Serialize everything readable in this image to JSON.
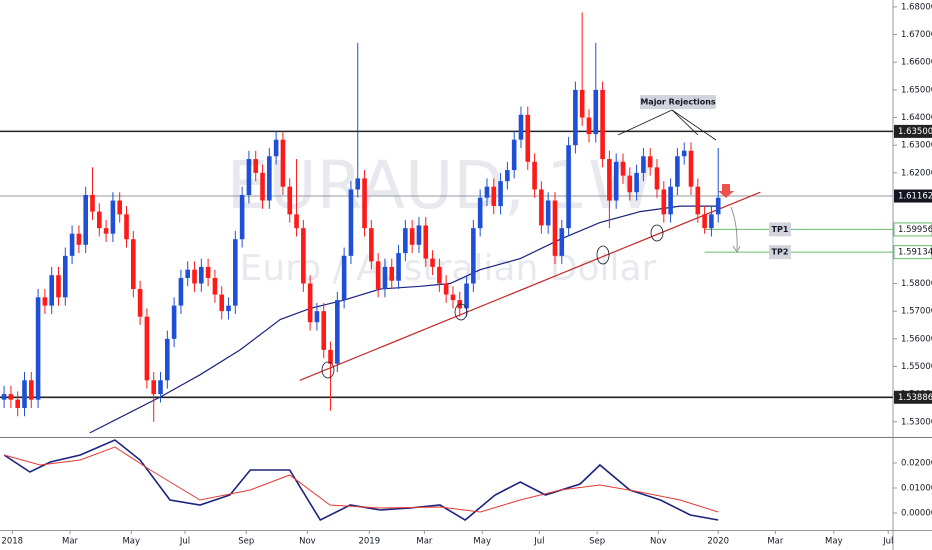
{
  "chart_data": [
    {
      "type": "candlestick",
      "watermark": [
        "EURAUD, 1W",
        "Euro / Australian Dollar"
      ],
      "up_color": "#1f4fd6",
      "down_color": "#ff1a1a",
      "open": [
        1.538,
        1.54,
        1.538,
        1.535,
        1.545,
        1.538,
        1.575,
        1.572,
        1.583,
        1.575,
        1.59,
        1.598,
        1.594,
        1.612,
        1.606,
        1.6,
        1.598,
        1.61,
        1.605,
        1.596,
        1.578,
        1.568,
        1.545,
        1.54,
        1.545,
        1.56,
        1.572,
        1.582,
        1.585,
        1.58,
        1.586,
        1.582,
        1.576,
        1.57,
        1.572,
        1.596,
        1.612,
        1.625,
        1.62,
        1.61,
        1.626,
        1.632,
        1.615,
        1.605,
        1.6,
        1.58,
        1.566,
        1.57,
        1.556,
        1.551,
        1.574,
        1.59,
        1.614,
        1.618,
        1.6,
        1.588,
        1.578,
        1.586,
        1.581,
        1.591,
        1.6,
        1.594,
        1.601,
        1.589,
        1.586,
        1.58,
        1.576,
        1.574,
        1.571,
        1.58,
        1.6,
        1.611,
        1.615,
        1.608,
        1.617,
        1.621,
        1.632,
        1.641,
        1.624,
        1.614,
        1.601,
        1.61,
        1.59,
        1.6,
        1.63,
        1.65,
        1.64,
        1.634,
        1.65,
        1.625,
        1.61,
        1.624,
        1.619,
        1.613,
        1.62,
        1.626,
        1.622,
        1.614,
        1.605,
        1.615,
        1.626,
        1.628,
        1.615,
        1.605,
        1.6,
        1.605
      ],
      "high": [
        1.543,
        1.543,
        1.541,
        1.548,
        1.548,
        1.578,
        1.578,
        1.586,
        1.586,
        1.593,
        1.601,
        1.601,
        1.615,
        1.622,
        1.609,
        1.603,
        1.613,
        1.613,
        1.608,
        1.599,
        1.581,
        1.571,
        1.548,
        1.548,
        1.563,
        1.575,
        1.585,
        1.588,
        1.588,
        1.589,
        1.589,
        1.585,
        1.579,
        1.575,
        1.599,
        1.615,
        1.628,
        1.628,
        1.623,
        1.629,
        1.635,
        1.635,
        1.618,
        1.625,
        1.603,
        1.583,
        1.573,
        1.573,
        1.559,
        1.577,
        1.593,
        1.617,
        1.667,
        1.621,
        1.603,
        1.591,
        1.589,
        1.589,
        1.594,
        1.603,
        1.603,
        1.604,
        1.604,
        1.592,
        1.589,
        1.583,
        1.579,
        1.577,
        1.583,
        1.603,
        1.614,
        1.618,
        1.618,
        1.62,
        1.624,
        1.635,
        1.644,
        1.644,
        1.627,
        1.617,
        1.613,
        1.613,
        1.603,
        1.633,
        1.653,
        1.678,
        1.643,
        1.667,
        1.653,
        1.628,
        1.627,
        1.627,
        1.622,
        1.623,
        1.629,
        1.629,
        1.625,
        1.617,
        1.618,
        1.629,
        1.631,
        1.631,
        1.618,
        1.608,
        1.608,
        1.629
      ],
      "low": [
        1.535,
        1.535,
        1.532,
        1.532,
        1.535,
        1.535,
        1.569,
        1.569,
        1.572,
        1.572,
        1.587,
        1.591,
        1.591,
        1.603,
        1.597,
        1.595,
        1.595,
        1.602,
        1.593,
        1.575,
        1.565,
        1.542,
        1.53,
        1.537,
        1.542,
        1.557,
        1.569,
        1.579,
        1.577,
        1.577,
        1.579,
        1.573,
        1.567,
        1.567,
        1.569,
        1.593,
        1.609,
        1.617,
        1.607,
        1.607,
        1.623,
        1.612,
        1.602,
        1.597,
        1.577,
        1.563,
        1.563,
        1.553,
        1.534,
        1.548,
        1.571,
        1.587,
        1.611,
        1.597,
        1.585,
        1.575,
        1.575,
        1.578,
        1.578,
        1.588,
        1.591,
        1.591,
        1.586,
        1.583,
        1.577,
        1.573,
        1.571,
        1.568,
        1.568,
        1.577,
        1.597,
        1.608,
        1.605,
        1.605,
        1.614,
        1.618,
        1.629,
        1.621,
        1.611,
        1.598,
        1.598,
        1.587,
        1.587,
        1.597,
        1.627,
        1.637,
        1.631,
        1.631,
        1.622,
        1.6,
        1.607,
        1.616,
        1.61,
        1.61,
        1.617,
        1.619,
        1.611,
        1.602,
        1.602,
        1.612,
        1.623,
        1.612,
        1.602,
        1.598,
        1.597,
        1.602
      ],
      "close": [
        1.54,
        1.538,
        1.535,
        1.545,
        1.538,
        1.575,
        1.572,
        1.583,
        1.575,
        1.59,
        1.598,
        1.594,
        1.612,
        1.606,
        1.6,
        1.598,
        1.61,
        1.605,
        1.596,
        1.578,
        1.568,
        1.545,
        1.54,
        1.545,
        1.56,
        1.572,
        1.582,
        1.585,
        1.58,
        1.586,
        1.582,
        1.576,
        1.57,
        1.572,
        1.596,
        1.612,
        1.625,
        1.62,
        1.61,
        1.626,
        1.632,
        1.615,
        1.605,
        1.6,
        1.58,
        1.566,
        1.57,
        1.556,
        1.551,
        1.574,
        1.59,
        1.614,
        1.618,
        1.6,
        1.588,
        1.578,
        1.586,
        1.581,
        1.591,
        1.6,
        1.594,
        1.601,
        1.589,
        1.586,
        1.58,
        1.576,
        1.574,
        1.571,
        1.58,
        1.6,
        1.611,
        1.615,
        1.608,
        1.617,
        1.621,
        1.632,
        1.641,
        1.624,
        1.614,
        1.601,
        1.61,
        1.59,
        1.6,
        1.63,
        1.65,
        1.64,
        1.634,
        1.65,
        1.625,
        1.61,
        1.624,
        1.619,
        1.613,
        1.62,
        1.626,
        1.622,
        1.614,
        1.605,
        1.615,
        1.626,
        1.628,
        1.615,
        1.605,
        1.6,
        1.605,
        1.611
      ],
      "lines": [
        {
          "color": "#1a237e",
          "x": [
            12.6,
            23,
            28.8,
            34.7,
            40.6,
            45,
            50,
            55.3,
            61.2,
            65.6,
            70,
            75.9,
            81.8,
            87.6,
            93.5,
            99.4,
            105
          ],
          "values": [
            1.526,
            1.539,
            1.547,
            1.556,
            1.567,
            1.571,
            1.574,
            1.578,
            1.579,
            1.58,
            1.585,
            1.589,
            1.596,
            1.602,
            1.606,
            1.608,
            1.608
          ]
        },
        {
          "color": "#c62828",
          "x": [
            43.5,
            111.2
          ],
          "values": [
            1.545,
            1.613
          ]
        }
      ],
      "levels": [
        {
          "value": 1.635,
          "label": "1.63500",
          "color": "#222222"
        },
        {
          "value": 1.61162,
          "label": "1.61162",
          "color": "#9598a1"
        },
        {
          "value": 1.59956,
          "label": "1.59956",
          "color": "#66bb6a",
          "x_start": 103
        },
        {
          "value": 1.59134,
          "label": "1.59134",
          "color": "#66bb6a",
          "x_start": 103
        },
        {
          "value": 1.53886,
          "label": "1.53886",
          "color": "#222222"
        }
      ],
      "annotations": [
        "Major Rejections",
        "TP1",
        "TP2"
      ],
      "xlim": [
        -0.6,
        130.7
      ],
      "xticks": [
        {
          "value": 1.2,
          "label": "2018"
        },
        {
          "value": 9.7,
          "label": "Mar"
        },
        {
          "value": 18.7,
          "label": "May"
        },
        {
          "value": 26.6,
          "label": "Jul"
        },
        {
          "value": 35.6,
          "label": "Sep"
        },
        {
          "value": 44.6,
          "label": "Nov"
        },
        {
          "value": 53.7,
          "label": "2019"
        },
        {
          "value": 61.8,
          "label": "Mar"
        },
        {
          "value": 70.3,
          "label": "May"
        },
        {
          "value": 78.7,
          "label": "Jul"
        },
        {
          "value": 87.2,
          "label": "Sep"
        },
        {
          "value": 96.2,
          "label": "Nov"
        },
        {
          "value": 105,
          "label": "2020"
        },
        {
          "value": 113.4,
          "label": "Mar"
        },
        {
          "value": 122,
          "label": "May"
        },
        {
          "value": 130,
          "label": "Jul"
        }
      ],
      "ylim": [
        1.5245,
        1.6825
      ],
      "yticks": [
        {
          "value": 1.53,
          "label": "1.53000"
        },
        {
          "value": 1.54,
          "label": "1.54000"
        },
        {
          "value": 1.55,
          "label": "1.55000"
        },
        {
          "value": 1.56,
          "label": "1.56000"
        },
        {
          "value": 1.57,
          "label": "1.57000"
        },
        {
          "value": 1.58,
          "label": "1.58000"
        },
        {
          "value": 1.62,
          "label": "1.62000"
        },
        {
          "value": 1.63,
          "label": "1.63000"
        },
        {
          "value": 1.64,
          "label": "1.64000"
        },
        {
          "value": 1.65,
          "label": "1.65000"
        },
        {
          "value": 1.66,
          "label": "1.66000"
        },
        {
          "value": 1.67,
          "label": "1.67000"
        },
        {
          "value": 1.68,
          "label": "1.68000"
        }
      ]
    },
    {
      "type": "line",
      "series": [
        {
          "color": "#1a237e",
          "x": [
            0,
            3.8,
            6.8,
            11.2,
            16.3,
            20,
            24.4,
            28.8,
            33.2,
            36.2,
            42,
            46.5,
            50.9,
            55.3,
            59.7,
            64.1,
            67.8,
            72.2,
            75.9,
            79.6,
            84.7,
            87.6,
            92,
            96.5,
            100.9,
            105
          ],
          "values": [
            0.0232,
            0.0164,
            0.0204,
            0.0232,
            0.0292,
            0.0212,
            0.0052,
            0.0032,
            0.0072,
            0.0172,
            0.0172,
            -0.0028,
            0.0032,
            0.0012,
            0.002,
            0.0032,
            -0.0028,
            0.0072,
            0.0124,
            0.0072,
            0.0116,
            0.0192,
            0.0092,
            0.0052,
            -0.0008,
            -0.0028
          ]
        },
        {
          "color": "#e53935",
          "x": [
            0,
            5.3,
            11.2,
            16.3,
            21.5,
            28.8,
            36.2,
            42,
            47.9,
            55.3,
            64.1,
            70,
            75.9,
            81.8,
            87.6,
            93.5,
            99.4,
            105
          ],
          "values": [
            0.0232,
            0.0192,
            0.0212,
            0.0264,
            0.0172,
            0.0052,
            0.0092,
            0.0152,
            0.0032,
            0.002,
            0.0024,
            0.0004,
            0.0052,
            0.0092,
            0.0112,
            0.0084,
            0.0052,
            0.0004
          ]
        }
      ],
      "xlim": [
        -0.6,
        130.7
      ],
      "ylim": [
        -0.0068,
        0.0304
      ],
      "yticks": [
        {
          "value": 0.02,
          "label": "0.02000"
        },
        {
          "value": 0.01,
          "label": "0.01000"
        },
        {
          "value": 0,
          "label": "0.00000"
        }
      ]
    }
  ]
}
